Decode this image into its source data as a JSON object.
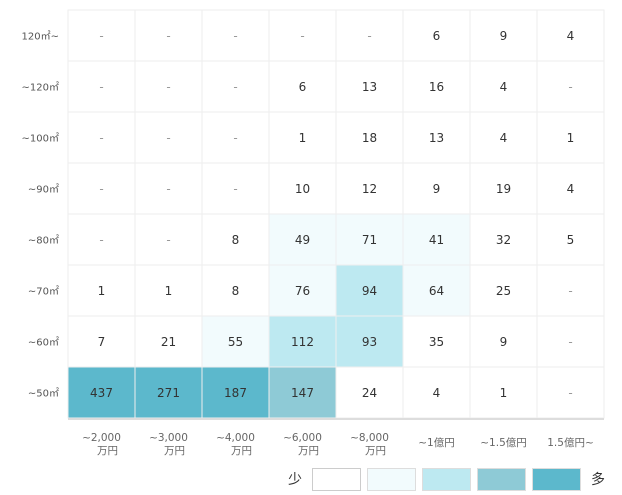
{
  "chart_data": {
    "type": "heatmap",
    "rows": [
      "120㎡~",
      "~120㎡",
      "~100㎡",
      "~90㎡",
      "~80㎡",
      "~70㎡",
      "~60㎡",
      "~50㎡"
    ],
    "columns": [
      [
        "~2,000",
        "万円"
      ],
      [
        "~3,000",
        "万円"
      ],
      [
        "~4,000",
        "万円"
      ],
      [
        "~6,000",
        "万円"
      ],
      [
        "~8,000",
        "万円"
      ],
      [
        "~1億円"
      ],
      [
        "~1.5億円"
      ],
      [
        "1.5億円~"
      ]
    ],
    "values": [
      [
        null,
        null,
        null,
        null,
        null,
        6,
        9,
        4
      ],
      [
        null,
        null,
        null,
        6,
        13,
        16,
        4,
        null
      ],
      [
        null,
        null,
        null,
        1,
        18,
        13,
        4,
        1
      ],
      [
        null,
        null,
        null,
        10,
        12,
        9,
        19,
        4
      ],
      [
        null,
        null,
        8,
        49,
        71,
        41,
        32,
        5
      ],
      [
        1,
        1,
        8,
        76,
        94,
        64,
        25,
        null
      ],
      [
        7,
        21,
        55,
        112,
        93,
        35,
        9,
        null
      ],
      [
        437,
        271,
        187,
        147,
        24,
        4,
        1,
        null
      ]
    ],
    "levels": [
      [
        0,
        0,
        0,
        0,
        0,
        0,
        0,
        0
      ],
      [
        0,
        0,
        0,
        0,
        0,
        0,
        0,
        0
      ],
      [
        0,
        0,
        0,
        0,
        0,
        0,
        0,
        0
      ],
      [
        0,
        0,
        0,
        0,
        0,
        0,
        0,
        0
      ],
      [
        0,
        0,
        0,
        1,
        1,
        1,
        0,
        0
      ],
      [
        0,
        0,
        0,
        1,
        2,
        1,
        0,
        0
      ],
      [
        0,
        0,
        1,
        2,
        2,
        0,
        0,
        0
      ],
      [
        4,
        4,
        4,
        3,
        0,
        0,
        0,
        0
      ]
    ],
    "empty_symbol": "-",
    "legend": {
      "low_label": "少",
      "high_label": "多",
      "colors": [
        "#ffffff",
        "#f2fbfd",
        "#bde9f1",
        "#8ecad6",
        "#5cb8cc"
      ]
    }
  }
}
